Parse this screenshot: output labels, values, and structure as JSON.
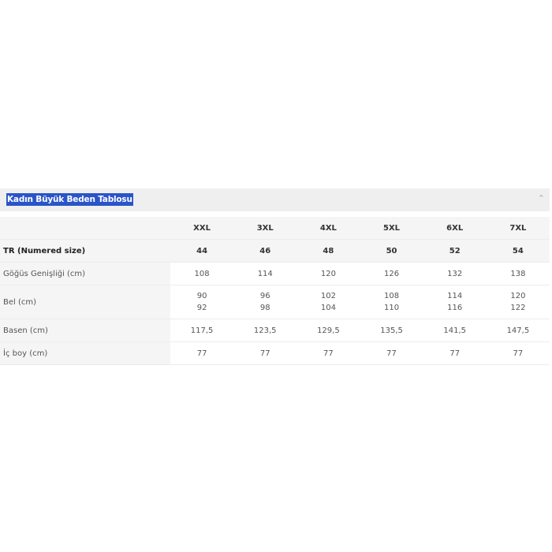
{
  "title": "Kadın Büyük Beden Tablosu",
  "collapse_icon": "chevron-up-icon",
  "columns": [
    "XXL",
    "3XL",
    "4XL",
    "5XL",
    "6XL",
    "7XL"
  ],
  "rows": [
    {
      "label": "TR (Numered size)",
      "values": [
        "44",
        "46",
        "48",
        "50",
        "52",
        "54"
      ]
    },
    {
      "label": "Göğüs Genişliği (cm)",
      "values": [
        "108",
        "114",
        "120",
        "126",
        "132",
        "138"
      ]
    },
    {
      "label": "Bel (cm)",
      "values": [
        [
          "90",
          "92"
        ],
        [
          "96",
          "98"
        ],
        [
          "102",
          "104"
        ],
        [
          "108",
          "110"
        ],
        [
          "114",
          "116"
        ],
        [
          "120",
          "122"
        ]
      ]
    },
    {
      "label": "Basen (cm)",
      "values": [
        "117,5",
        "123,5",
        "129,5",
        "135,5",
        "141,5",
        "147,5"
      ]
    },
    {
      "label": "İç boy (cm)",
      "values": [
        "77",
        "77",
        "77",
        "77",
        "77",
        "77"
      ]
    }
  ]
}
